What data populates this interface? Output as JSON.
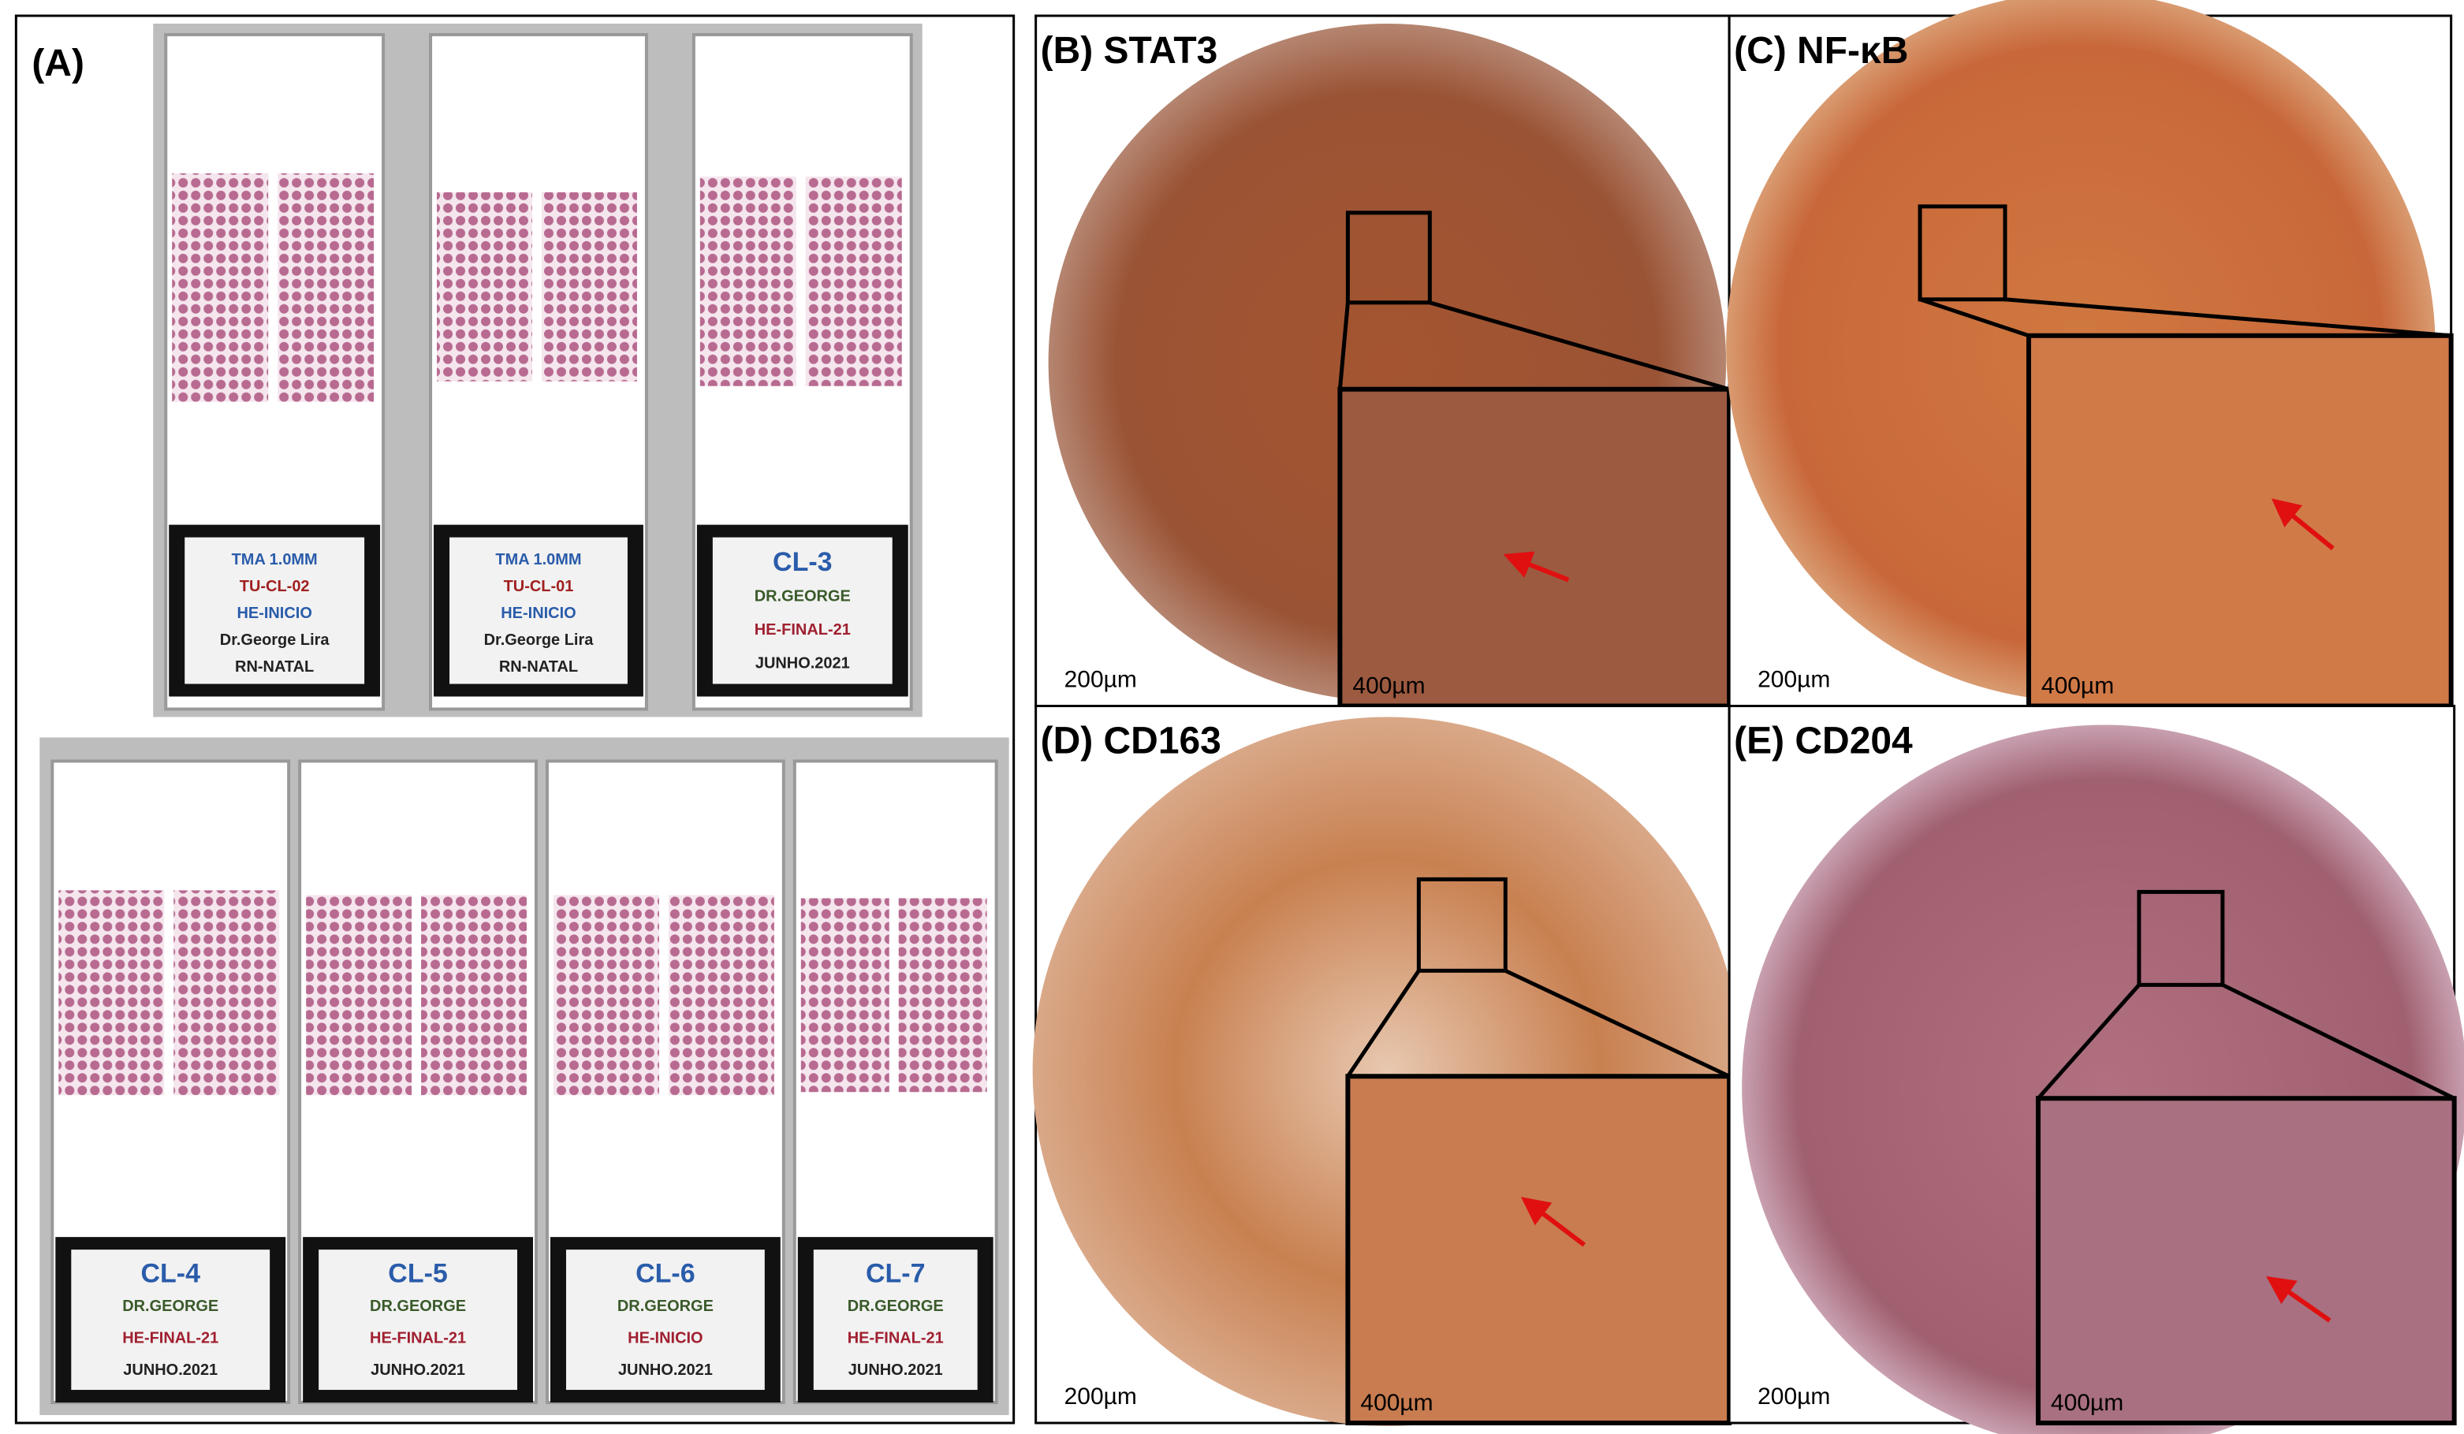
{
  "panel_a": {
    "label": "(A)",
    "slides": [
      {
        "lines": [
          "TMA 1.0MM",
          "TU-CL-02",
          "HE-INICIO",
          "Dr.George Lira",
          "RN-NATAL"
        ]
      },
      {
        "lines": [
          "TMA 1.0MM",
          "TU-CL-01",
          "HE-INICIO",
          "Dr.George Lira",
          "RN-NATAL"
        ]
      },
      {
        "lines": [
          "CL-3",
          "DR.GEORGE",
          "HE-FINAL-21",
          "JUNHO.2021"
        ]
      },
      {
        "lines": [
          "CL-4",
          "DR.GEORGE",
          "HE-FINAL-21",
          "JUNHO.2021"
        ]
      },
      {
        "lines": [
          "CL-5",
          "DR.GEORGE",
          "HE-FINAL-21",
          "JUNHO.2021"
        ]
      },
      {
        "lines": [
          "CL-6",
          "DR.GEORGE",
          "HE-INICIO",
          "JUNHO.2021"
        ]
      },
      {
        "lines": [
          "CL-7",
          "DR.GEORGE",
          "HE-FINAL-21",
          "JUNHO.2021"
        ]
      }
    ]
  },
  "panels": [
    {
      "label": "(B) STAT3",
      "scale_main": "200µm",
      "scale_inset": "400µm"
    },
    {
      "label": "(C) NF-κB",
      "scale_main": "200µm",
      "scale_inset": "400µm"
    },
    {
      "label": "(D) CD163",
      "scale_main": "200µm",
      "scale_inset": "400µm"
    },
    {
      "label": "(E) CD204",
      "scale_main": "200µm",
      "scale_inset": "400µm"
    }
  ]
}
